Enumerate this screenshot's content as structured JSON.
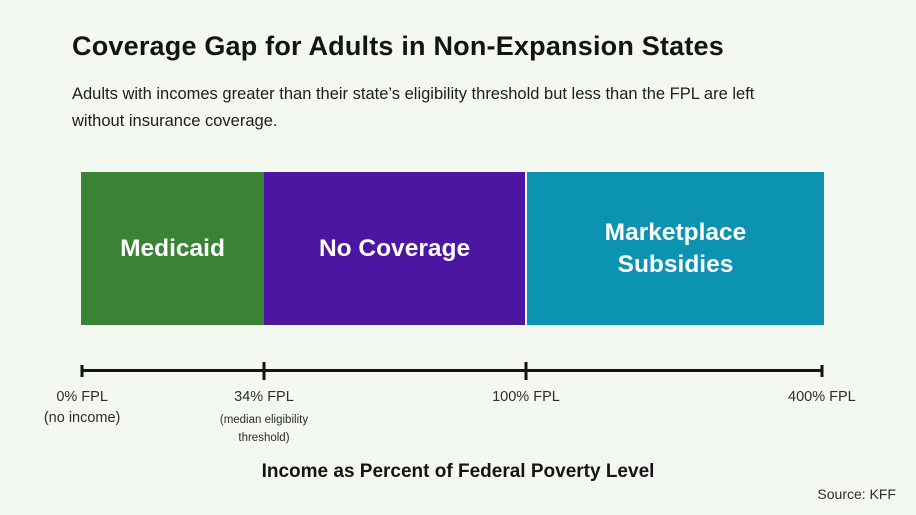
{
  "header": {
    "title": "Coverage Gap for Adults in Non-Expansion States",
    "subtitle_lines": [
      "Adults with incomes greater than their state’s eligibility threshold but less than the FPL are left",
      "without insurance coverage."
    ]
  },
  "chart_data": {
    "type": "bar",
    "orientation": "horizontal-range",
    "title": "Coverage Gap for Adults in Non-Expansion States",
    "xlabel": "Income as Percent of Federal Poverty Level",
    "axis_range_fpl_pct": [
      0,
      400
    ],
    "grid": false,
    "segments": [
      {
        "label": "Medicaid",
        "from_fpl_pct": 0,
        "to_fpl_pct": 34,
        "color": "#3a8334",
        "width_pct": 24.63
      },
      {
        "label": "No Coverage",
        "from_fpl_pct": 34,
        "to_fpl_pct": 100,
        "color": "#4c16a2",
        "width_pct": 35.13
      },
      {
        "label": "Marketplace Subsidies",
        "from_fpl_pct": 100,
        "to_fpl_pct": 400,
        "color": "#0b93b1",
        "width_pct": 39.97
      }
    ],
    "ticks": [
      {
        "label": "0% FPL",
        "sublabel": "(no income)",
        "value_fpl_pct": 0,
        "pos_pct": 0.15
      },
      {
        "label": "34% FPL",
        "sublabel": "(median eligibility threshold)",
        "value_fpl_pct": 34,
        "pos_pct": 24.66
      },
      {
        "label": "100% FPL",
        "sublabel": "",
        "value_fpl_pct": 100,
        "pos_pct": 59.97
      },
      {
        "label": "400% FPL",
        "sublabel": "",
        "value_fpl_pct": 400,
        "pos_pct": 99.85
      }
    ]
  },
  "footer": {
    "source": "Source: KFF"
  },
  "colors": {
    "background": "#f3f8f0",
    "medicaid_green": "#3a8334",
    "no_coverage_purple": "#4c16a2",
    "marketplace_teal": "#0b93b1",
    "axis_black": "#141414",
    "text_dark": "#1d1d1d"
  }
}
